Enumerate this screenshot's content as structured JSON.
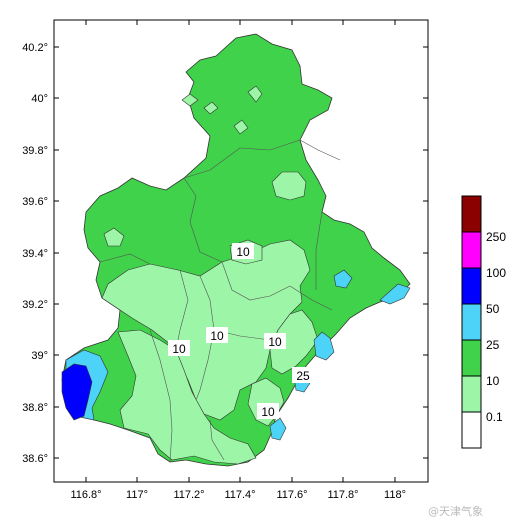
{
  "map": {
    "lon_ticks": [
      "116.8°",
      "117°",
      "117.2°",
      "117.4°",
      "117.6°",
      "117.8°",
      "118°"
    ],
    "lat_ticks": [
      "40.2°",
      "40°",
      "39.8°",
      "39.6°",
      "39.4°",
      "39.2°",
      "39°",
      "38.8°",
      "38.6°"
    ],
    "contour_labels": [
      "10",
      "10",
      "10",
      "10",
      "25",
      "10"
    ]
  },
  "legend": {
    "labels": [
      "250",
      "100",
      "50",
      "25",
      "10",
      "0.1"
    ],
    "colors": [
      "#8b0000",
      "#ff00ff",
      "#0000ff",
      "#4dd3f7",
      "#3fd24a",
      "#9df5a8",
      "#ffffff"
    ]
  },
  "watermark": {
    "text": "@天津气象"
  }
}
